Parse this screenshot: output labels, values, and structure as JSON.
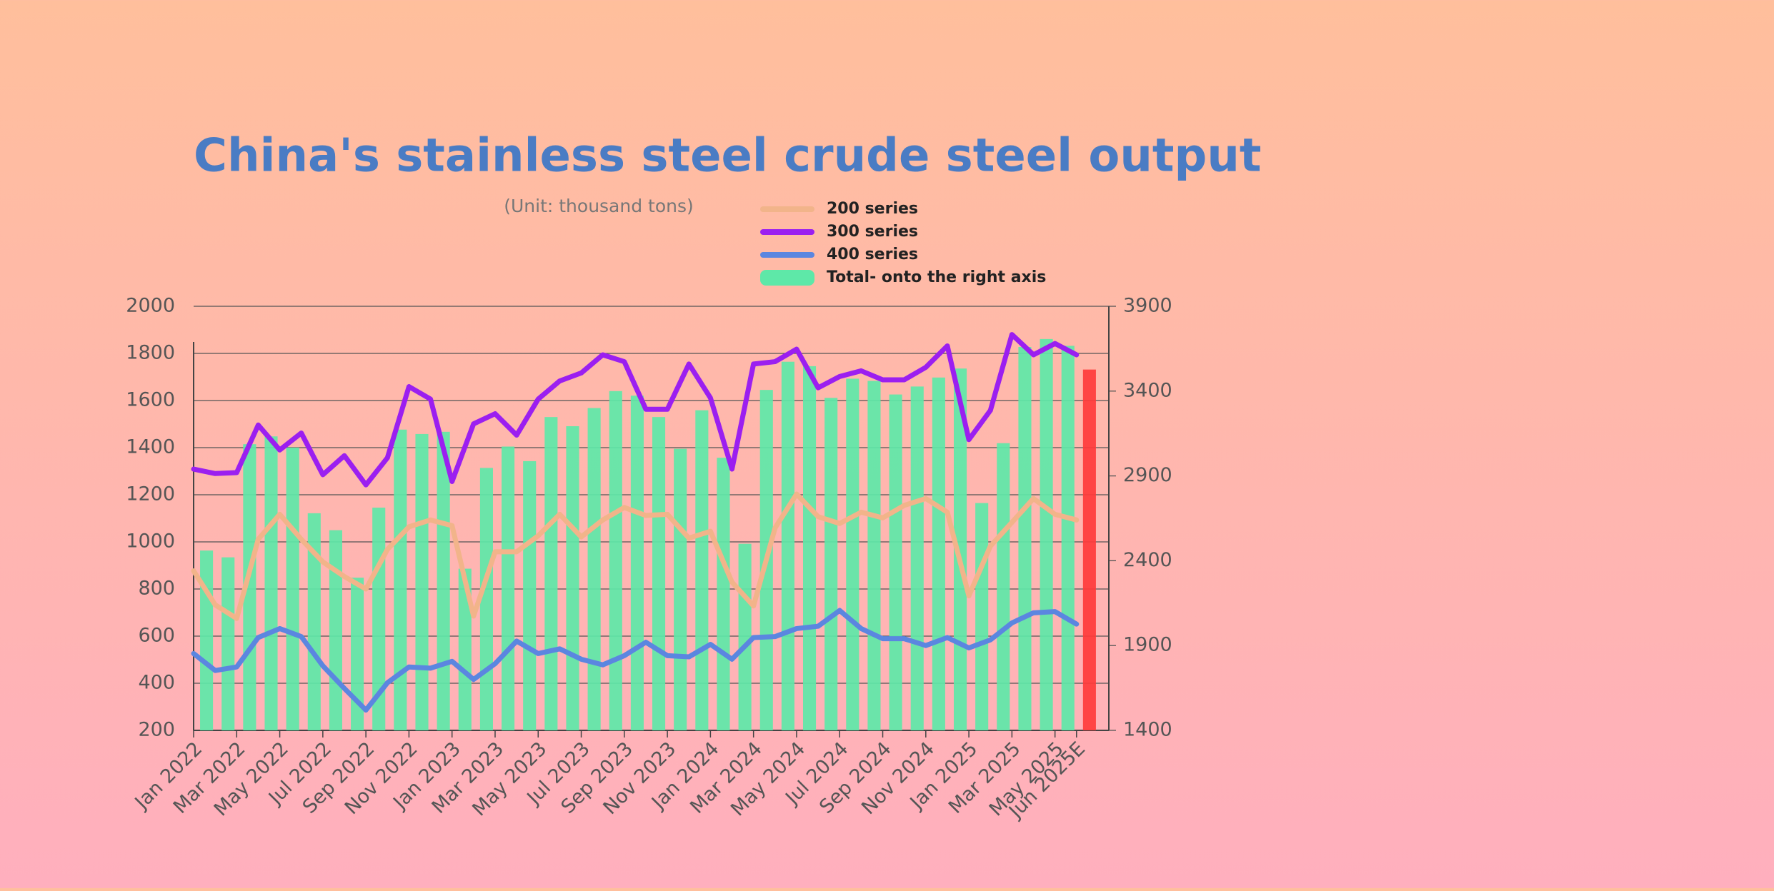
{
  "chart_data": {
    "type": "bar-line",
    "title": "China's stainless steel crude steel output",
    "subtitle": "(Unit: thousand tons)",
    "categories": [
      "Jan 2022",
      null,
      "Mar 2022",
      null,
      "May 2022",
      null,
      "Jul 2022",
      null,
      "Sep 2022",
      null,
      "Nov 2022",
      null,
      "Jan 2023",
      null,
      "Mar 2023",
      null,
      "May 2023",
      null,
      "Jul 2023",
      null,
      "Sep 2023",
      null,
      "Nov 2023",
      null,
      "Jan 2024",
      null,
      "Mar 2024",
      null,
      "May 2024",
      null,
      "Jul 2024",
      null,
      "Sep 2024",
      null,
      "Nov 2024",
      null,
      "Jan 2025",
      null,
      "Mar 2025",
      null,
      "May 2025",
      "Jun 2025E"
    ],
    "series": [
      {
        "name": "200 series",
        "kind": "line",
        "color": "#f2b48a",
        "values": [
          877,
          733,
          675,
          1011,
          1117,
          1011,
          915,
          853,
          800,
          968,
          1064,
          1093,
          1069,
          685,
          958,
          958,
          1026,
          1117,
          1021,
          1093,
          1146,
          1112,
          1117,
          1016,
          1045,
          829,
          728,
          1059,
          1203,
          1107,
          1078,
          1126,
          1102,
          1155,
          1184,
          1126,
          771,
          982,
          1083,
          1184,
          1117,
          1093
        ]
      },
      {
        "name": "300 series",
        "kind": "line",
        "color": "#9b1ff0",
        "values": [
          1309,
          1290,
          1294,
          1496,
          1390,
          1462,
          1285,
          1366,
          1242,
          1357,
          1659,
          1606,
          1256,
          1501,
          1544,
          1453,
          1606,
          1683,
          1717,
          1794,
          1765,
          1563,
          1563,
          1755,
          1611,
          1309,
          1755,
          1765,
          1818,
          1654,
          1702,
          1726,
          1688,
          1688,
          1741,
          1832,
          1434,
          1558,
          1880,
          1794,
          1842,
          1794
        ]
      },
      {
        "name": "400 series",
        "kind": "line",
        "color": "#5b86e0",
        "values": [
          526,
          454,
          469,
          594,
          632,
          598,
          474,
          378,
          286,
          402,
          469,
          464,
          493,
          416,
          483,
          579,
          526,
          546,
          502,
          478,
          517,
          574,
          517,
          512,
          565,
          502,
          594,
          598,
          632,
          642,
          709,
          632,
          589,
          589,
          560,
          594,
          550,
          584,
          656,
          699,
          704,
          651
        ]
      },
      {
        "name": "Total- onto the right axis",
        "kind": "bar",
        "axis": "y2",
        "color": "#5ee8a8",
        "last_color": "#ff3b3b",
        "values": [
          2460,
          2420,
          3087,
          3133,
          3067,
          2680,
          2580,
          2300,
          2713,
          3173,
          3147,
          3160,
          2353,
          2947,
          3073,
          2987,
          3247,
          3193,
          3300,
          3400,
          3373,
          3247,
          3060,
          3287,
          3007,
          2500,
          3407,
          3573,
          3547,
          3360,
          3473,
          3460,
          3380,
          3427,
          3480,
          3533,
          2740,
          3093,
          3660,
          3707,
          3667,
          3527
        ]
      }
    ],
    "ylim": [
      200,
      2000
    ],
    "yticks": [
      200,
      400,
      600,
      800,
      1000,
      1200,
      1400,
      1600,
      1800,
      2000
    ],
    "y2lim": [
      1400,
      3900
    ],
    "y2ticks": [
      1400,
      1900,
      2400,
      2900,
      3400,
      3900
    ],
    "grid": true
  }
}
